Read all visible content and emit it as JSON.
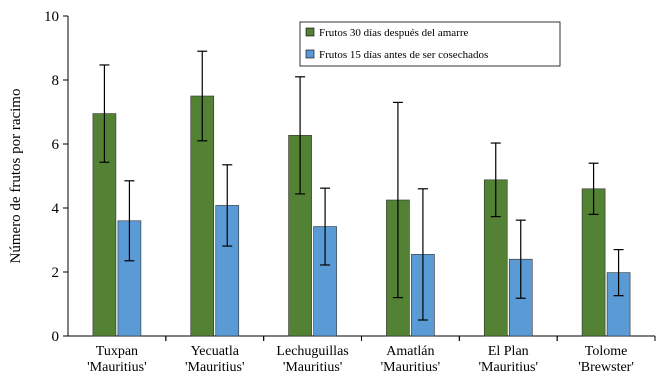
{
  "chart_data": {
    "type": "bar",
    "title": "",
    "xlabel": "",
    "ylabel": "Número de frutos por racimo",
    "ylim": [
      0,
      10
    ],
    "yticks": [
      0,
      2,
      4,
      6,
      8,
      10
    ],
    "grid": false,
    "legend_position": "top-right",
    "categories": [
      [
        "Tuxpan",
        "'Mauritius'"
      ],
      [
        "Yecuatla",
        "'Mauritius'"
      ],
      [
        "Lechuguillas",
        "'Mauritius'"
      ],
      [
        "Amatlán",
        "'Mauritius'"
      ],
      [
        "El Plan",
        "'Mauritius'"
      ],
      [
        "Tolome",
        "'Brewster'"
      ]
    ],
    "series": [
      {
        "name": "Frutos 30 días después del amarre",
        "color": "#548235",
        "values": [
          6.95,
          7.5,
          6.27,
          4.25,
          4.88,
          4.6
        ],
        "errors": [
          1.52,
          1.4,
          1.83,
          3.05,
          1.15,
          0.8
        ]
      },
      {
        "name": "Frutos 15 días antes de ser cosechados",
        "color": "#5B9BD5",
        "values": [
          3.6,
          4.08,
          3.42,
          2.55,
          2.4,
          1.98
        ],
        "errors": [
          1.25,
          1.27,
          1.2,
          2.05,
          1.22,
          0.72
        ]
      }
    ]
  }
}
